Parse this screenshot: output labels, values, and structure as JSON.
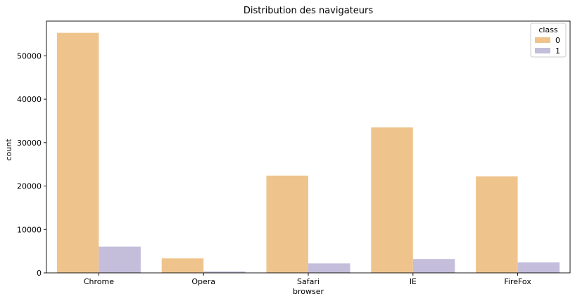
{
  "chart_data": {
    "type": "bar",
    "title": "Distribution des navigateurs",
    "xlabel": "browser",
    "ylabel": "count",
    "categories": [
      "Chrome",
      "Opera",
      "Safari",
      "IE",
      "FireFox"
    ],
    "series": [
      {
        "name": "0",
        "color": "#efc48c",
        "values": [
          55300,
          3350,
          22400,
          33500,
          22250
        ]
      },
      {
        "name": "1",
        "color": "#c4bedb",
        "values": [
          6050,
          320,
          2200,
          3200,
          2400
        ]
      }
    ],
    "ylim": [
      0,
      58000
    ],
    "yticks": [
      0,
      10000,
      20000,
      30000,
      40000,
      50000
    ],
    "grid": false,
    "legend": {
      "title": "class",
      "placement": "top-right"
    }
  }
}
